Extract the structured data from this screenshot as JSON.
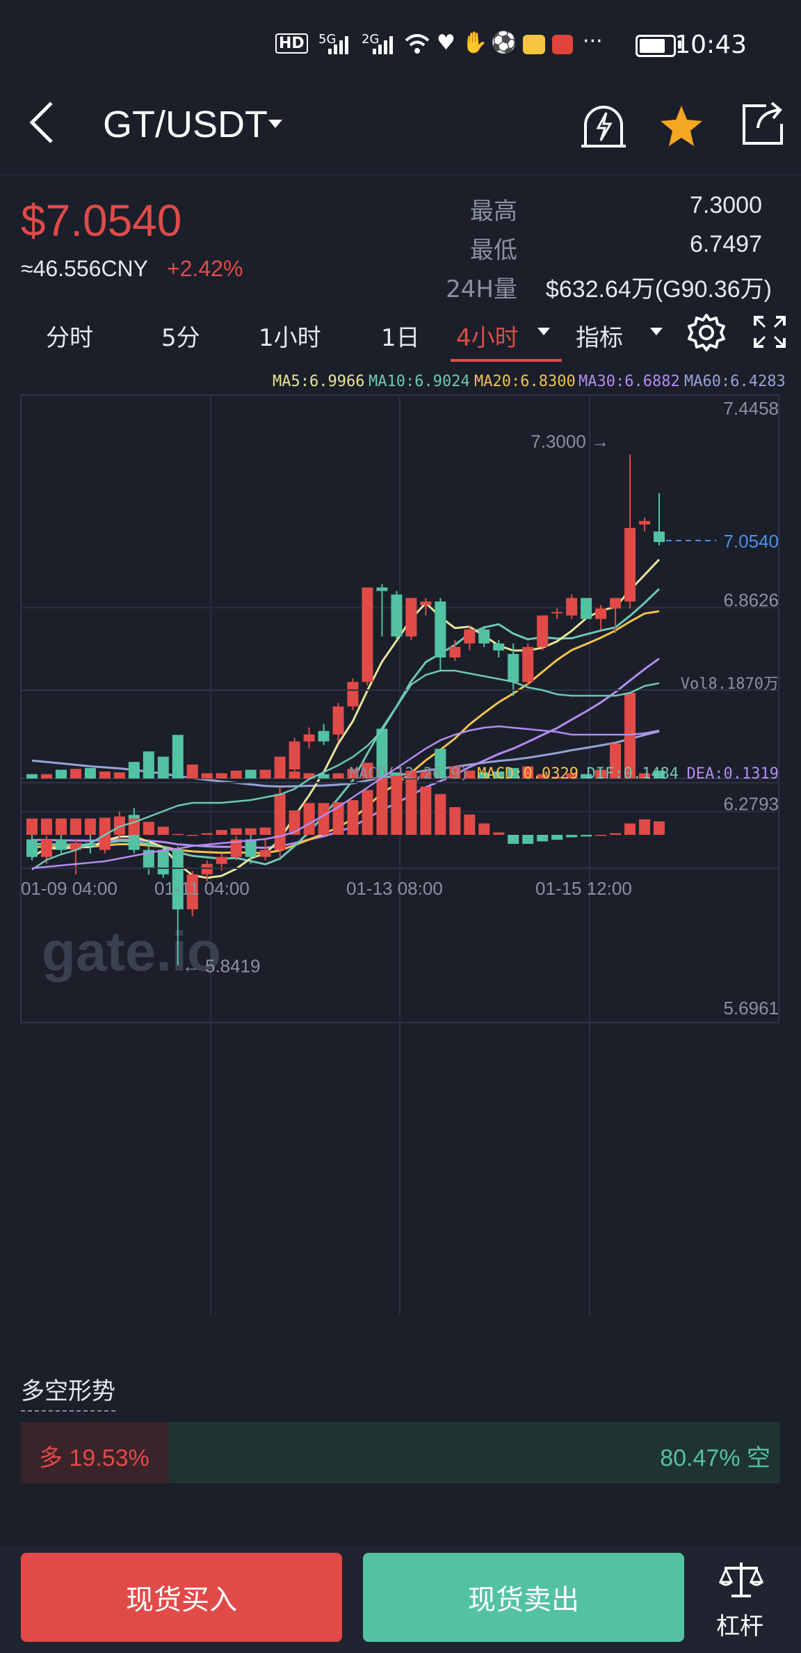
{
  "status_bar": {
    "network_labels": [
      "HD",
      "5G",
      "2G"
    ],
    "time": "10:43",
    "more": "···"
  },
  "header": {
    "pair": "GT/USDT",
    "icons": [
      "back-icon",
      "caret-down-icon",
      "alert-bell-icon",
      "star-icon",
      "share-icon"
    ],
    "star_color": "#f5a623"
  },
  "ticker": {
    "price": "$7.0540",
    "cny": "≈46.556CNY",
    "change": "+2.42%",
    "high_label": "最高",
    "high": "7.3000",
    "low_label": "最低",
    "low": "6.7497",
    "vol_label": "24H量",
    "vol": "$632.64万(G90.36万)"
  },
  "tabs": {
    "items": [
      "分时",
      "5分",
      "1小时",
      "1日",
      "4小时",
      "指标"
    ],
    "active": "4小时"
  },
  "ma_legend": {
    "ma5": "MA5:6.9966",
    "ma10": "MA10:6.9024",
    "ma20": "MA20:6.8300",
    "ma30": "MA30:6.6882",
    "ma60": "MA60:6.4283"
  },
  "colors": {
    "up": "#e04b48",
    "down": "#53c2a3",
    "ma5": "#e8e39a",
    "ma10": "#6fc7b6",
    "ma20": "#f2c24b",
    "ma30": "#b48cf0",
    "ma60": "#9aa3d6",
    "last_price": "#4f8fe6",
    "background": "#1b1f2a"
  },
  "chart_data": {
    "type": "candlestick",
    "y_ticks": [
      "7.4458",
      "6.8626",
      "6.2793",
      "5.6961"
    ],
    "ylim": [
      5.6961,
      7.4458
    ],
    "x_ticks": [
      "01-09 04:00",
      "01-11 04:00",
      "01-13 08:00",
      "01-15 12:00"
    ],
    "max_label": "7.3000",
    "min_label": "5.8419",
    "last_label": "7.0540",
    "watermark": "gate.io",
    "candles": [
      {
        "o": 6.2,
        "h": 6.22,
        "l": 6.14,
        "c": 6.15
      },
      {
        "o": 6.15,
        "h": 6.21,
        "l": 6.13,
        "c": 6.2
      },
      {
        "o": 6.2,
        "h": 6.22,
        "l": 6.16,
        "c": 6.17
      },
      {
        "o": 6.17,
        "h": 6.2,
        "l": 6.1,
        "c": 6.19
      },
      {
        "o": 6.19,
        "h": 6.23,
        "l": 6.16,
        "c": 6.18
      },
      {
        "o": 6.17,
        "h": 6.26,
        "l": 6.16,
        "c": 6.24
      },
      {
        "o": 6.24,
        "h": 6.28,
        "l": 6.2,
        "c": 6.26
      },
      {
        "o": 6.27,
        "h": 6.29,
        "l": 6.16,
        "c": 6.17
      },
      {
        "o": 6.17,
        "h": 6.2,
        "l": 6.1,
        "c": 6.12
      },
      {
        "o": 6.17,
        "h": 6.18,
        "l": 6.09,
        "c": 6.1
      },
      {
        "o": 6.17,
        "h": 6.18,
        "l": 5.84,
        "c": 6.0
      },
      {
        "o": 6.0,
        "h": 6.11,
        "l": 5.98,
        "c": 6.1
      },
      {
        "o": 6.1,
        "h": 6.14,
        "l": 6.08,
        "c": 6.13
      },
      {
        "o": 6.13,
        "h": 6.16,
        "l": 6.11,
        "c": 6.15
      },
      {
        "o": 6.15,
        "h": 6.21,
        "l": 6.14,
        "c": 6.2
      },
      {
        "o": 6.2,
        "h": 6.22,
        "l": 6.13,
        "c": 6.15
      },
      {
        "o": 6.15,
        "h": 6.2,
        "l": 6.14,
        "c": 6.17
      },
      {
        "o": 6.17,
        "h": 6.35,
        "l": 6.15,
        "c": 6.33
      },
      {
        "o": 6.4,
        "h": 6.49,
        "l": 6.39,
        "c": 6.48
      },
      {
        "o": 6.48,
        "h": 6.52,
        "l": 6.46,
        "c": 6.5
      },
      {
        "o": 6.51,
        "h": 6.53,
        "l": 6.47,
        "c": 6.48
      },
      {
        "o": 6.5,
        "h": 6.59,
        "l": 6.48,
        "c": 6.58
      },
      {
        "o": 6.58,
        "h": 6.66,
        "l": 6.57,
        "c": 6.65
      },
      {
        "o": 6.65,
        "h": 6.92,
        "l": 6.64,
        "c": 6.92
      },
      {
        "o": 6.92,
        "h": 6.93,
        "l": 6.78,
        "c": 6.91
      },
      {
        "o": 6.9,
        "h": 6.91,
        "l": 6.77,
        "c": 6.78
      },
      {
        "o": 6.78,
        "h": 6.89,
        "l": 6.77,
        "c": 6.89
      },
      {
        "o": 6.87,
        "h": 6.89,
        "l": 6.84,
        "c": 6.88
      },
      {
        "o": 6.88,
        "h": 6.89,
        "l": 6.68,
        "c": 6.72
      },
      {
        "o": 6.72,
        "h": 6.77,
        "l": 6.71,
        "c": 6.75
      },
      {
        "o": 6.76,
        "h": 6.81,
        "l": 6.74,
        "c": 6.8
      },
      {
        "o": 6.8,
        "h": 6.81,
        "l": 6.75,
        "c": 6.76
      },
      {
        "o": 6.76,
        "h": 6.77,
        "l": 6.72,
        "c": 6.74
      },
      {
        "o": 6.73,
        "h": 6.76,
        "l": 6.61,
        "c": 6.65
      },
      {
        "o": 6.65,
        "h": 6.76,
        "l": 6.64,
        "c": 6.75
      },
      {
        "o": 6.75,
        "h": 6.84,
        "l": 6.74,
        "c": 6.84
      },
      {
        "o": 6.85,
        "h": 6.86,
        "l": 6.83,
        "c": 6.85
      },
      {
        "o": 6.84,
        "h": 6.9,
        "l": 6.83,
        "c": 6.89
      },
      {
        "o": 6.89,
        "h": 6.89,
        "l": 6.83,
        "c": 6.83
      },
      {
        "o": 6.83,
        "h": 6.87,
        "l": 6.8,
        "c": 6.86
      },
      {
        "o": 6.86,
        "h": 6.89,
        "l": 6.79,
        "c": 6.89
      },
      {
        "o": 6.88,
        "h": 7.3,
        "l": 6.86,
        "c": 7.09
      },
      {
        "o": 7.1,
        "h": 7.12,
        "l": 7.08,
        "c": 7.11
      },
      {
        "o": 7.08,
        "h": 7.19,
        "l": 7.04,
        "c": 7.05
      }
    ],
    "volume": {
      "label": "Vol8.1870万",
      "values": [
        0.5,
        0.5,
        1,
        1.1,
        1.2,
        0.8,
        0.7,
        1.9,
        3.1,
        2.5,
        5.0,
        1.6,
        0.6,
        0.6,
        0.9,
        1.0,
        1.0,
        2.5,
        0.8,
        0.6,
        0.5,
        0.6,
        1.1,
        1.8,
        5.7,
        0.7,
        0.9,
        0.8,
        3.4,
        1.4,
        0.9,
        0.7,
        0.8,
        1.2,
        1.4,
        0.5,
        0.2,
        0.6,
        0.5,
        1.0,
        4.0,
        9.8,
        0.6,
        0.9
      ]
    },
    "macd": {
      "label": "MACD(12,26,9)",
      "macd": "MACD:0.0329",
      "dif": "DIF:0.1484",
      "dea": "DEA:0.1319",
      "hist": [
        0.04,
        0.04,
        0.04,
        0.04,
        0.04,
        0.042,
        0.045,
        0.04,
        0.032,
        0.02,
        0.002,
        0.0,
        0.004,
        0.012,
        0.016,
        0.016,
        0.018,
        0.03,
        0.06,
        0.078,
        0.078,
        0.08,
        0.085,
        0.11,
        0.14,
        0.145,
        0.136,
        0.118,
        0.1,
        0.068,
        0.05,
        0.028,
        0.006,
        -0.022,
        -0.022,
        -0.016,
        -0.012,
        -0.006,
        -0.004,
        0.0,
        0.004,
        0.028,
        0.038,
        0.033
      ]
    }
  },
  "sentiment": {
    "title": "多空形势",
    "long_label": "多 19.53%",
    "short_label": "80.47% 空",
    "long_fraction": 0.1953
  },
  "actions": {
    "buy": "现货买入",
    "sell": "现货卖出",
    "leverage": "杠杆"
  }
}
